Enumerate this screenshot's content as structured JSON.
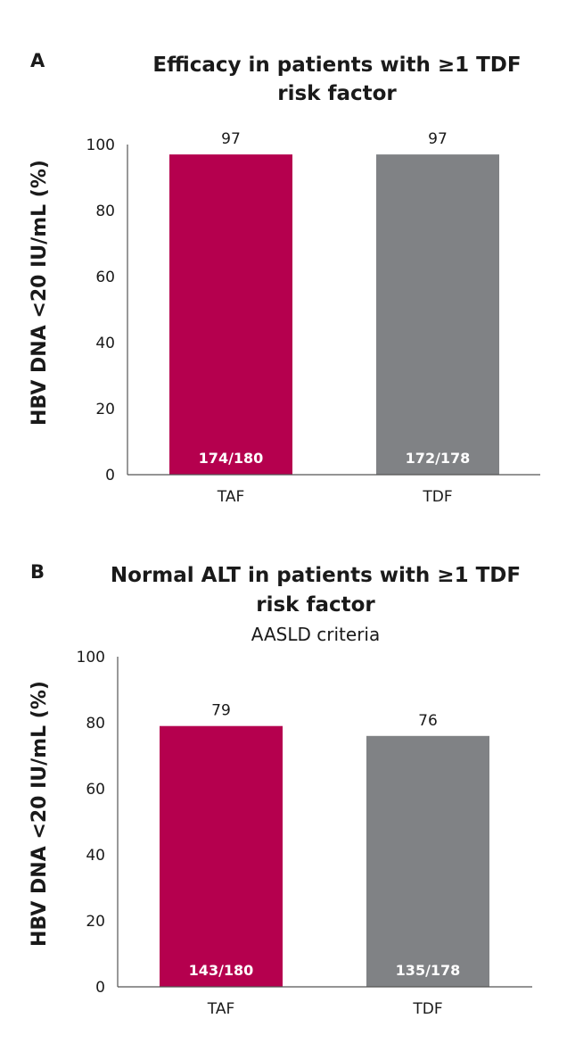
{
  "chart_data": [
    {
      "panel": "A",
      "type": "bar",
      "title_lines": [
        "Efficacy in patients with ≥1 TDF",
        "risk factor"
      ],
      "subtitle": "",
      "ylabel": "HBV DNA <20 IU/mL (%)",
      "xlabel": "",
      "ylim": [
        0,
        100
      ],
      "yticks": [
        0,
        20,
        40,
        60,
        80,
        100
      ],
      "categories": [
        "TAF",
        "TDF"
      ],
      "values": [
        97,
        97
      ],
      "value_labels": [
        "97",
        "97"
      ],
      "counts": [
        "174/180",
        "172/178"
      ],
      "colors": [
        "#b5004e",
        "#808285"
      ],
      "grid": false
    },
    {
      "panel": "B",
      "type": "bar",
      "title_lines": [
        "Normal ALT in patients with ≥1 TDF",
        "risk factor"
      ],
      "subtitle": "AASLD criteria",
      "ylabel": "HBV DNA <20 IU/mL (%)",
      "xlabel": "",
      "ylim": [
        0,
        100
      ],
      "yticks": [
        0,
        20,
        40,
        60,
        80,
        100
      ],
      "categories": [
        "TAF",
        "TDF"
      ],
      "values": [
        79,
        76
      ],
      "value_labels": [
        "79",
        "76"
      ],
      "counts": [
        "143/180",
        "135/178"
      ],
      "colors": [
        "#b5004e",
        "#808285"
      ],
      "grid": false
    }
  ]
}
